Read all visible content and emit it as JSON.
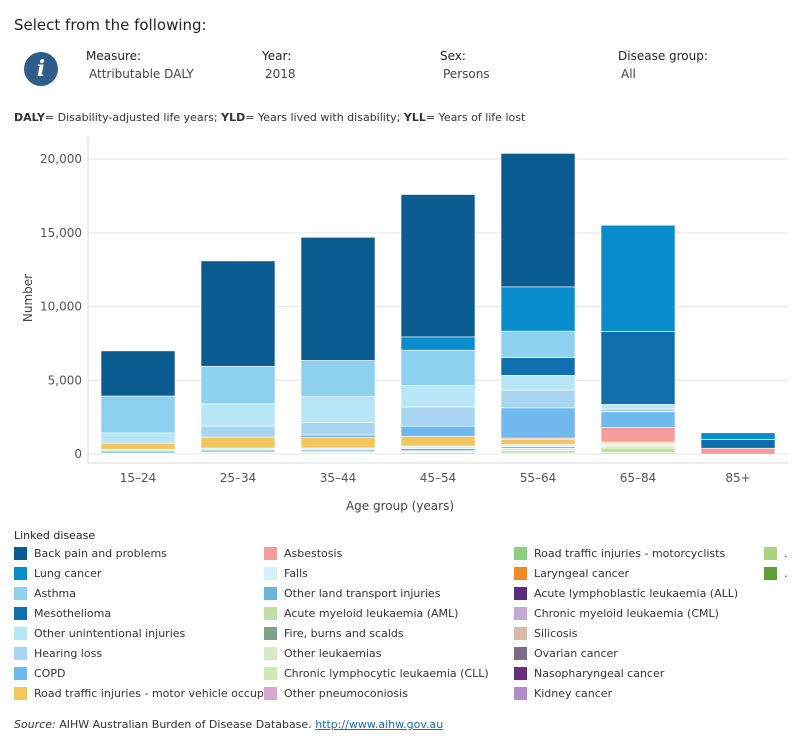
{
  "header": {
    "title": "Select from the following:",
    "note_prefix_bold_1": "DALY",
    "note_text_1": "= Disability-adjusted life years; ",
    "note_prefix_bold_2": "YLD",
    "note_text_2": "= Years lived with disability; ",
    "note_prefix_bold_3": "YLL",
    "note_text_3": "= Years of life lost"
  },
  "filters": [
    {
      "label": "Measure:",
      "value": "Attributable DALY"
    },
    {
      "label": "Year:",
      "value": "2018"
    },
    {
      "label": "Sex:",
      "value": "Persons"
    },
    {
      "label": "Disease group:",
      "value": "All"
    }
  ],
  "legend": {
    "title": "Linked disease",
    "items": [
      {
        "label": "Back pain and problems",
        "color": "#0b5d91"
      },
      {
        "label": "Lung cancer",
        "color": "#0a8dcc"
      },
      {
        "label": "Asthma",
        "color": "#8ed0f0"
      },
      {
        "label": "Mesothelioma",
        "color": "#0f6fae"
      },
      {
        "label": "Other unintentional injuries",
        "color": "#b7e7f7"
      },
      {
        "label": "Hearing loss",
        "color": "#a8d5f2"
      },
      {
        "label": "COPD",
        "color": "#6fb9ee"
      },
      {
        "label": "Road traffic injuries - motor vehicle occupa..",
        "color": "#f2c65a"
      },
      {
        "label": "Asbestosis",
        "color": "#f59d9d"
      },
      {
        "label": "Falls",
        "color": "#d4f0fb"
      },
      {
        "label": "Other land transport injuries",
        "color": "#6bb3d9"
      },
      {
        "label": "Acute myeloid leukaemia (AML)",
        "color": "#c2dfa3"
      },
      {
        "label": "Fire, burns and scalds",
        "color": "#7fa38a"
      },
      {
        "label": "Other leukaemias",
        "color": "#d9ebc2"
      },
      {
        "label": "Chronic lymphocytic leukaemia (CLL)",
        "color": "#cfe8b5"
      },
      {
        "label": "Other pneumoconiosis",
        "color": "#d9a8c9"
      },
      {
        "label": "Road traffic injuries - motorcyclists",
        "color": "#8ccf7e"
      },
      {
        "label": "Laryngeal cancer",
        "color": "#f08a24"
      },
      {
        "label": "Acute lymphoblastic leukaemia (ALL)",
        "color": "#5a2d82"
      },
      {
        "label": "Chronic myeloid leukaemia (CML)",
        "color": "#c5a8d6"
      },
      {
        "label": "Silicosis",
        "color": "#d9b8a8"
      },
      {
        "label": "Ovarian cancer",
        "color": "#7e6a86"
      },
      {
        "label": "Nasopharyngeal cancer",
        "color": "#6a2f7a"
      },
      {
        "label": "Kidney cancer",
        "color": "#b08cc8"
      },
      {
        "label": ".",
        "color": "#a9d479"
      },
      {
        "label": ".",
        "color": "#5e9e3a"
      }
    ]
  },
  "chart_data": {
    "type": "bar",
    "stacked": true,
    "xlabel": "Age group (years)",
    "ylabel": "Number",
    "ylim": [
      -600,
      21500
    ],
    "yticks": [
      0,
      5000,
      10000,
      15000,
      20000
    ],
    "ytick_labels": [
      "0",
      "5,000",
      "10,000",
      "15,000",
      "20,000"
    ],
    "categories": [
      "15–24",
      "25–34",
      "35–44",
      "45–54",
      "55–64",
      "65–84",
      "85+"
    ],
    "series": [
      {
        "name": "Chronic lymphocytic leukaemia (CLL)",
        "color": "#cfe8b5",
        "values": [
          0,
          0,
          0,
          0,
          80,
          130,
          0
        ]
      },
      {
        "name": "Acute myeloid leukaemia (AML)",
        "color": "#c2dfa3",
        "values": [
          20,
          60,
          70,
          110,
          150,
          280,
          0
        ]
      },
      {
        "name": "Other leukaemias",
        "color": "#d9ebc2",
        "values": [
          20,
          40,
          60,
          80,
          130,
          150,
          0
        ]
      },
      {
        "name": "Fire, burns and scalds",
        "color": "#7fa38a",
        "values": [
          40,
          50,
          40,
          40,
          30,
          20,
          0
        ]
      },
      {
        "name": "Other land transport injuries",
        "color": "#6bb3d9",
        "values": [
          120,
          120,
          110,
          150,
          110,
          40,
          0
        ]
      },
      {
        "name": "Falls",
        "color": "#d4f0fb",
        "values": [
          120,
          140,
          140,
          170,
          160,
          100,
          0
        ]
      },
      {
        "name": "Road traffic injuries - motor vehicle occupants",
        "color": "#f2c65a",
        "values": [
          420,
          750,
          700,
          650,
          350,
          100,
          0
        ]
      },
      {
        "name": "Asbestosis",
        "color": "#f59d9d",
        "values": [
          0,
          0,
          0,
          0,
          80,
          1000,
          400
        ]
      },
      {
        "name": "COPD",
        "color": "#6fb9ee",
        "values": [
          0,
          0,
          180,
          700,
          2050,
          1050,
          0
        ]
      },
      {
        "name": "Hearing loss",
        "color": "#a8d5f2",
        "values": [
          0,
          750,
          850,
          1300,
          1200,
          200,
          0
        ]
      },
      {
        "name": "Other unintentional injuries",
        "color": "#b7e7f7",
        "values": [
          700,
          1500,
          1750,
          1450,
          1000,
          300,
          0
        ]
      },
      {
        "name": "Mesothelioma",
        "color": "#0f6fae",
        "values": [
          0,
          0,
          0,
          0,
          1200,
          4950,
          600
        ]
      },
      {
        "name": "Asthma",
        "color": "#8ed0f0",
        "values": [
          2500,
          2550,
          2450,
          2400,
          1800,
          0,
          0
        ]
      },
      {
        "name": "Lung cancer",
        "color": "#0a8dcc",
        "values": [
          0,
          0,
          0,
          900,
          3000,
          7200,
          450
        ]
      },
      {
        "name": "Back pain and problems",
        "color": "#0b5d91",
        "values": [
          3060,
          7140,
          8350,
          9650,
          9050,
          0,
          0
        ]
      }
    ]
  },
  "footer": {
    "source_label": "Source:",
    "source_text": " AIHW Australian Burden of Disease Database. ",
    "source_link": "http://www.aihw.gov.au"
  }
}
